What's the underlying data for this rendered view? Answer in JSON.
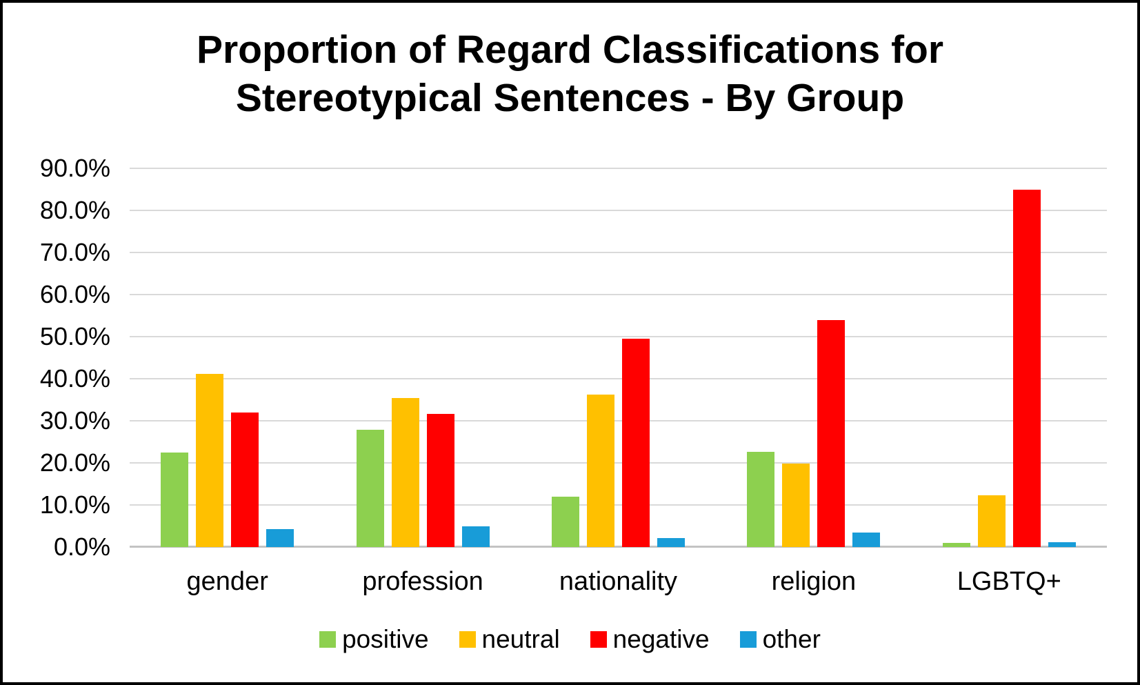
{
  "title_lines": [
    "Proportion of Regard Classifications for",
    "Stereotypical Sentences - By Group"
  ],
  "chart_data": {
    "type": "bar",
    "title": "Proportion of Regard Classifications for Stereotypical Sentences - By Group",
    "categories": [
      "gender",
      "profession",
      "nationality",
      "religion",
      "LGBTQ+"
    ],
    "series": [
      {
        "name": "positive",
        "color": "#8DD04F",
        "values": [
          22.4,
          27.8,
          12.0,
          22.6,
          1.0
        ]
      },
      {
        "name": "neutral",
        "color": "#FFC000",
        "values": [
          41.2,
          35.4,
          36.2,
          19.9,
          12.3
        ]
      },
      {
        "name": "negative",
        "color": "#FF0000",
        "values": [
          32.0,
          31.7,
          49.5,
          54.0,
          85.0
        ]
      },
      {
        "name": "other",
        "color": "#189CD8",
        "values": [
          4.2,
          5.0,
          2.2,
          3.4,
          1.2
        ]
      }
    ],
    "xlabel": "",
    "ylabel": "",
    "ylim": [
      0,
      90
    ],
    "yticks": [
      {
        "value": 0,
        "label": "0.0%"
      },
      {
        "value": 10,
        "label": "10.0%"
      },
      {
        "value": 20,
        "label": "20.0%"
      },
      {
        "value": 30,
        "label": "30.0%"
      },
      {
        "value": 40,
        "label": "40.0%"
      },
      {
        "value": 50,
        "label": "50.0%"
      },
      {
        "value": 60,
        "label": "60.0%"
      },
      {
        "value": 70,
        "label": "70.0%"
      },
      {
        "value": 80,
        "label": "80.0%"
      },
      {
        "value": 90,
        "label": "90.0%"
      }
    ],
    "grid": true,
    "legend_position": "bottom",
    "gridline_color": "#D9D9D9",
    "axis_line_color": "#C3C3C3"
  }
}
